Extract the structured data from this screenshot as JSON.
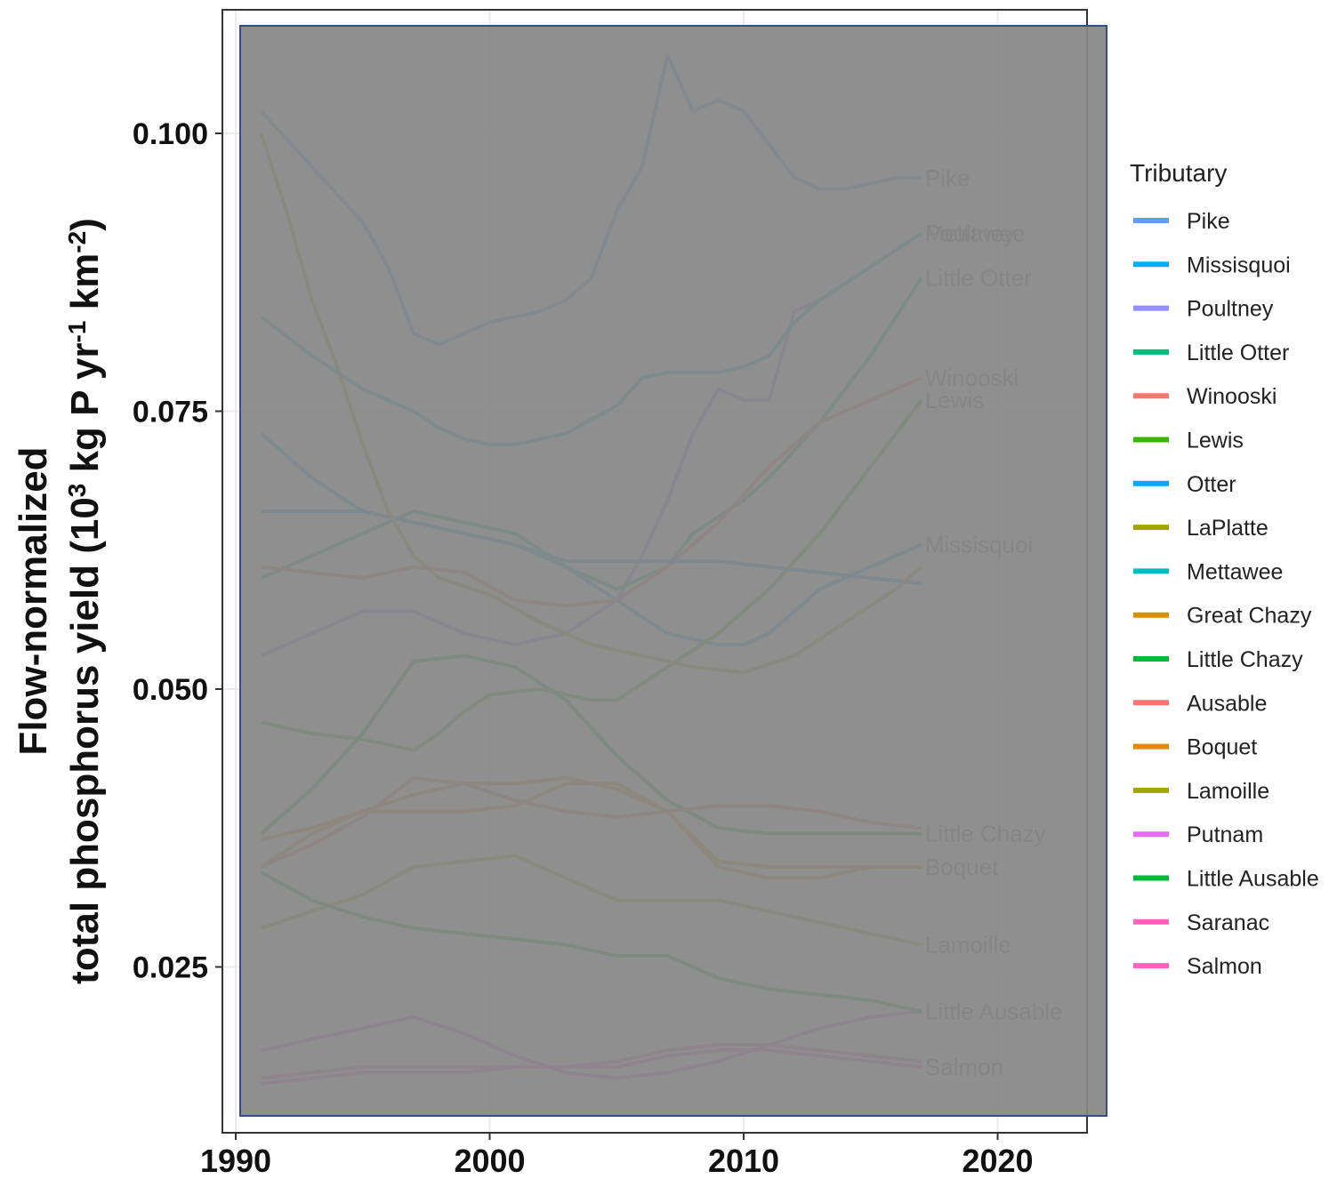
{
  "chart_data": {
    "type": "line",
    "title": "",
    "xlabel": "",
    "ylabel": {
      "line1": "Flow-normalized",
      "line2_a": "total phosphorus yield (10",
      "line2_sup1": "3",
      "line2_b": " kg P yr",
      "line2_sup2": "-1",
      "line2_c": " km",
      "line2_sup3": "-2",
      "line2_d": ")"
    },
    "xlim": [
      1990,
      2024
    ],
    "ylim": [
      0.0115,
      0.1115
    ],
    "x_ticks": [
      "1990",
      "2000",
      "2010",
      "2020"
    ],
    "y_ticks": [
      "0.025",
      "0.050",
      "0.075",
      "0.100"
    ],
    "grid": true,
    "overlay_color": "#878787",
    "legend": {
      "title": "Tributary",
      "position": "right"
    },
    "series": [
      {
        "name": "Pike",
        "color": "#619CFF",
        "end_label": "Pike",
        "x": [
          1991,
          1993,
          1995,
          1996,
          1997,
          1998,
          1999,
          2000,
          2002,
          2003,
          2004,
          2005,
          2006,
          2007,
          2008,
          2009,
          2010,
          2011,
          2012,
          2013,
          2014,
          2015,
          2016,
          2017
        ],
        "y": [
          0.102,
          0.097,
          0.092,
          0.088,
          0.082,
          0.081,
          0.082,
          0.083,
          0.084,
          0.085,
          0.087,
          0.093,
          0.097,
          0.107,
          0.102,
          0.103,
          0.102,
          0.099,
          0.096,
          0.095,
          0.095,
          0.0955,
          0.096,
          0.096
        ]
      },
      {
        "name": "Missisquoi",
        "color": "#00B0F6",
        "end_label": "Missisquoi",
        "x": [
          1991,
          1993,
          1995,
          1997,
          1999,
          2001,
          2003,
          2005,
          2007,
          2009,
          2010,
          2011,
          2012,
          2013,
          2015,
          2017
        ],
        "y": [
          0.073,
          0.069,
          0.066,
          0.065,
          0.064,
          0.063,
          0.061,
          0.058,
          0.055,
          0.054,
          0.054,
          0.055,
          0.057,
          0.059,
          0.061,
          0.063
        ]
      },
      {
        "name": "Poultney",
        "color": "#9590FF",
        "end_label": "Poultney",
        "x": [
          1991,
          1993,
          1995,
          1997,
          1999,
          2001,
          2003,
          2005,
          2006,
          2007,
          2008,
          2009,
          2010,
          2011,
          2012,
          2013,
          2015,
          2017
        ],
        "y": [
          0.053,
          0.055,
          0.057,
          0.057,
          0.055,
          0.054,
          0.055,
          0.058,
          0.062,
          0.067,
          0.073,
          0.077,
          0.076,
          0.076,
          0.084,
          0.085,
          0.088,
          0.091
        ]
      },
      {
        "name": "Little Otter",
        "color": "#00BF7D",
        "end_label": "Little Otter",
        "x": [
          1991,
          1993,
          1995,
          1997,
          1999,
          2001,
          2003,
          2005,
          2007,
          2008,
          2010,
          2011,
          2013,
          2015,
          2017
        ],
        "y": [
          0.06,
          0.062,
          0.064,
          0.066,
          0.065,
          0.064,
          0.061,
          0.059,
          0.061,
          0.064,
          0.067,
          0.069,
          0.074,
          0.08,
          0.087
        ]
      },
      {
        "name": "Winooski",
        "color": "#F8766D",
        "end_label": "Winooski",
        "x": [
          1991,
          1993,
          1995,
          1997,
          1999,
          2001,
          2003,
          2005,
          2007,
          2009,
          2011,
          2013,
          2015,
          2017
        ],
        "y": [
          0.061,
          0.0605,
          0.06,
          0.061,
          0.0605,
          0.058,
          0.0575,
          0.058,
          0.061,
          0.065,
          0.07,
          0.074,
          0.076,
          0.078
        ]
      },
      {
        "name": "Lewis",
        "color": "#39B600",
        "end_label": "Lewis",
        "x": [
          1991,
          1993,
          1995,
          1997,
          1998,
          1999,
          2000,
          2002,
          2004,
          2005,
          2007,
          2009,
          2011,
          2013,
          2015,
          2017
        ],
        "y": [
          0.047,
          0.046,
          0.0455,
          0.0445,
          0.046,
          0.048,
          0.0495,
          0.05,
          0.049,
          0.049,
          0.052,
          0.055,
          0.059,
          0.064,
          0.07,
          0.076
        ]
      },
      {
        "name": "Otter",
        "color": "#00A9FF",
        "end_label": "",
        "x": [
          1991,
          1993,
          1995,
          1997,
          1999,
          2001,
          2003,
          2005,
          2007,
          2009,
          2011,
          2013,
          2015,
          2017
        ],
        "y": [
          0.066,
          0.066,
          0.066,
          0.065,
          0.064,
          0.063,
          0.0615,
          0.0615,
          0.0615,
          0.0615,
          0.061,
          0.0605,
          0.06,
          0.0595
        ]
      },
      {
        "name": "LaPlatte",
        "color": "#A3A500",
        "end_label": "",
        "x": [
          1991,
          1992,
          1993,
          1994,
          1995,
          1996,
          1997,
          1998,
          2000,
          2002,
          2004,
          2006,
          2008,
          2010,
          2012,
          2014,
          2016,
          2017
        ],
        "y": [
          0.1,
          0.093,
          0.085,
          0.079,
          0.072,
          0.066,
          0.062,
          0.06,
          0.0585,
          0.056,
          0.054,
          0.053,
          0.052,
          0.0515,
          0.053,
          0.056,
          0.059,
          0.061
        ]
      },
      {
        "name": "Mettawee",
        "color": "#00BFC4",
        "end_label": "Mettawee",
        "x": [
          1991,
          1993,
          1995,
          1997,
          1998,
          1999,
          2000,
          2001,
          2002,
          2003,
          2005,
          2006,
          2007,
          2009,
          2010,
          2011,
          2012,
          2013,
          2015,
          2017
        ],
        "y": [
          0.0835,
          0.08,
          0.077,
          0.075,
          0.0735,
          0.0725,
          0.072,
          0.072,
          0.0725,
          0.073,
          0.0755,
          0.078,
          0.0785,
          0.0785,
          0.079,
          0.08,
          0.083,
          0.085,
          0.088,
          0.091
        ]
      },
      {
        "name": "Great Chazy",
        "color": "#D89000",
        "end_label": "",
        "x": [
          1991,
          1993,
          1995,
          1997,
          1999,
          2001,
          2003,
          2005,
          2007,
          2009,
          2011,
          2013,
          2015,
          2017
        ],
        "y": [
          0.034,
          0.037,
          0.039,
          0.0405,
          0.0415,
          0.0415,
          0.042,
          0.041,
          0.039,
          0.0345,
          0.034,
          0.034,
          0.034,
          0.034
        ]
      },
      {
        "name": "Little Chazy",
        "color": "#00BA38",
        "end_label": "Little Chazy",
        "x": [
          1991,
          1993,
          1995,
          1997,
          1999,
          2001,
          2003,
          2005,
          2007,
          2009,
          2011,
          2013,
          2015,
          2017
        ],
        "y": [
          0.037,
          0.041,
          0.046,
          0.0525,
          0.053,
          0.052,
          0.049,
          0.044,
          0.04,
          0.0375,
          0.037,
          0.037,
          0.037,
          0.037
        ]
      },
      {
        "name": "Ausable",
        "color": "#F8766D",
        "end_label": "",
        "x": [
          1991,
          1993,
          1995,
          1997,
          1999,
          2001,
          2003,
          2005,
          2007,
          2009,
          2011,
          2013,
          2015,
          2017
        ],
        "y": [
          0.034,
          0.036,
          0.0385,
          0.042,
          0.0415,
          0.04,
          0.039,
          0.0385,
          0.039,
          0.0395,
          0.0395,
          0.039,
          0.038,
          0.0375
        ]
      },
      {
        "name": "Boquet",
        "color": "#E58700",
        "end_label": "Boquet",
        "x": [
          1991,
          1993,
          1995,
          1997,
          1999,
          2001,
          2003,
          2005,
          2007,
          2009,
          2011,
          2013,
          2015,
          2017
        ],
        "y": [
          0.0365,
          0.0375,
          0.039,
          0.039,
          0.039,
          0.0395,
          0.0415,
          0.0415,
          0.039,
          0.034,
          0.033,
          0.033,
          0.034,
          0.034
        ]
      },
      {
        "name": "Lamoille",
        "color": "#A3A500",
        "end_label": "Lamoille",
        "x": [
          1991,
          1993,
          1995,
          1997,
          1999,
          2001,
          2003,
          2005,
          2007,
          2009,
          2011,
          2013,
          2015,
          2017
        ],
        "y": [
          0.0285,
          0.03,
          0.0315,
          0.034,
          0.0345,
          0.035,
          0.033,
          0.031,
          0.031,
          0.031,
          0.03,
          0.029,
          0.028,
          0.027
        ]
      },
      {
        "name": "Putnam",
        "color": "#E76BF3",
        "end_label": "",
        "x": [
          1991,
          1993,
          1995,
          1997,
          1999,
          2001,
          2003,
          2005,
          2007,
          2009,
          2011,
          2013,
          2015,
          2017
        ],
        "y": [
          0.0175,
          0.0185,
          0.0195,
          0.0205,
          0.019,
          0.017,
          0.0155,
          0.015,
          0.0155,
          0.0165,
          0.018,
          0.0195,
          0.0205,
          0.021
        ]
      },
      {
        "name": "Little Ausable",
        "color": "#00BA38",
        "end_label": "Little Ausable",
        "x": [
          1991,
          1993,
          1995,
          1997,
          1999,
          2001,
          2003,
          2005,
          2007,
          2009,
          2011,
          2013,
          2015,
          2017
        ],
        "y": [
          0.0335,
          0.031,
          0.0295,
          0.0285,
          0.028,
          0.0275,
          0.027,
          0.026,
          0.026,
          0.024,
          0.023,
          0.0225,
          0.022,
          0.021
        ]
      },
      {
        "name": "Saranac",
        "color": "#FF62BC",
        "end_label": "",
        "x": [
          1991,
          1993,
          1995,
          1997,
          1999,
          2001,
          2003,
          2005,
          2007,
          2009,
          2011,
          2013,
          2015,
          2017
        ],
        "y": [
          0.015,
          0.0155,
          0.016,
          0.016,
          0.016,
          0.016,
          0.016,
          0.0165,
          0.0175,
          0.018,
          0.018,
          0.0175,
          0.017,
          0.0165
        ]
      },
      {
        "name": "Salmon",
        "color": "#FF61C3",
        "end_label": "Salmon",
        "x": [
          1991,
          1993,
          1995,
          1997,
          1999,
          2001,
          2003,
          2005,
          2007,
          2009,
          2011,
          2013,
          2015,
          2017
        ],
        "y": [
          0.0145,
          0.015,
          0.0155,
          0.0155,
          0.0155,
          0.016,
          0.016,
          0.016,
          0.017,
          0.0175,
          0.0175,
          0.017,
          0.0165,
          0.016
        ]
      }
    ]
  }
}
